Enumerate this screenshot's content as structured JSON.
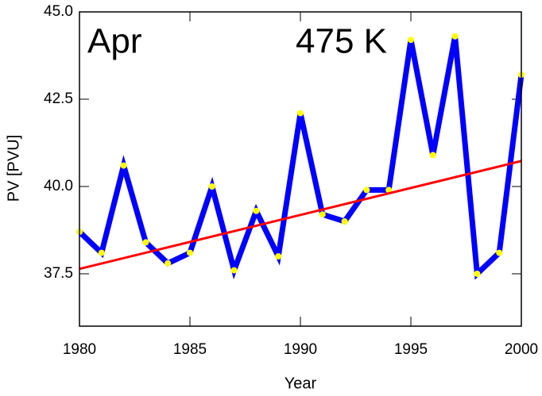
{
  "chart_data": {
    "type": "line",
    "annotations": [
      "Apr",
      "475 K"
    ],
    "xlabel": "Year",
    "ylabel": "PV [PVU]",
    "xlim": [
      1980,
      2000
    ],
    "xticks": [
      1980,
      1985,
      1990,
      1995,
      2000
    ],
    "ylim": [
      36,
      45
    ],
    "yticks": [
      37.5,
      {
        "value": 40,
        "label": "40.0"
      },
      42.5,
      {
        "value": 45,
        "label": "45.0"
      }
    ],
    "series": [
      {
        "color": "#0000ff",
        "marker_color": "#ffff00",
        "x": [
          1980,
          1981,
          1982,
          1983,
          1984,
          1985,
          1986,
          1987,
          1988,
          1989,
          1990,
          1991,
          1992,
          1993,
          1994,
          1995,
          1996,
          1997,
          1998,
          1999,
          2000
        ],
        "values": [
          38.7,
          38.1,
          40.6,
          38.4,
          37.8,
          38.1,
          40.0,
          37.6,
          39.3,
          38.0,
          42.1,
          39.2,
          39.0,
          39.9,
          39.9,
          44.2,
          40.9,
          44.3,
          37.5,
          38.1,
          43.2
        ]
      },
      {
        "color": "#ff0000",
        "x": [
          1980,
          2000
        ],
        "values": [
          37.64,
          40.73
        ]
      }
    ]
  }
}
